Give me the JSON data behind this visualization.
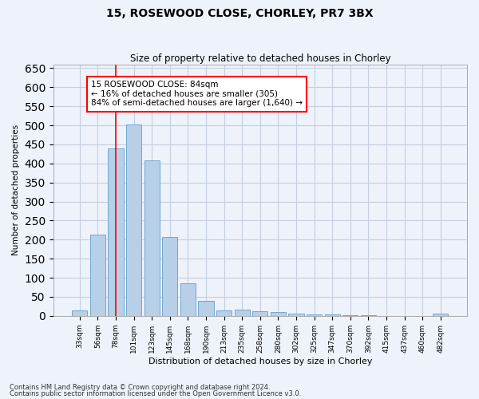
{
  "title": "15, ROSEWOOD CLOSE, CHORLEY, PR7 3BX",
  "subtitle": "Size of property relative to detached houses in Chorley",
  "xlabel": "Distribution of detached houses by size in Chorley",
  "ylabel": "Number of detached properties",
  "footnote1": "Contains HM Land Registry data © Crown copyright and database right 2024.",
  "footnote2": "Contains public sector information licensed under the Open Government Licence v3.0.",
  "annotation_title": "15 ROSEWOOD CLOSE: 84sqm",
  "annotation_line1": "← 16% of detached houses are smaller (305)",
  "annotation_line2": "84% of semi-detached houses are larger (1,640) →",
  "bar_color": "#b8cfe8",
  "bar_edge_color": "#6fa8d0",
  "categories": [
    "33sqm",
    "56sqm",
    "78sqm",
    "101sqm",
    "123sqm",
    "145sqm",
    "168sqm",
    "190sqm",
    "213sqm",
    "235sqm",
    "258sqm",
    "280sqm",
    "302sqm",
    "325sqm",
    "347sqm",
    "370sqm",
    "392sqm",
    "415sqm",
    "437sqm",
    "460sqm",
    "482sqm"
  ],
  "values": [
    15,
    213,
    440,
    503,
    407,
    206,
    86,
    40,
    15,
    16,
    12,
    10,
    6,
    4,
    4,
    2,
    1,
    0,
    0,
    0,
    5
  ],
  "ylim": [
    0,
    660
  ],
  "yticks": [
    0,
    50,
    100,
    150,
    200,
    250,
    300,
    350,
    400,
    450,
    500,
    550,
    600,
    650
  ],
  "red_line_x": 2.0,
  "background_color": "#eef2fb",
  "grid_color": "#c5cedf"
}
